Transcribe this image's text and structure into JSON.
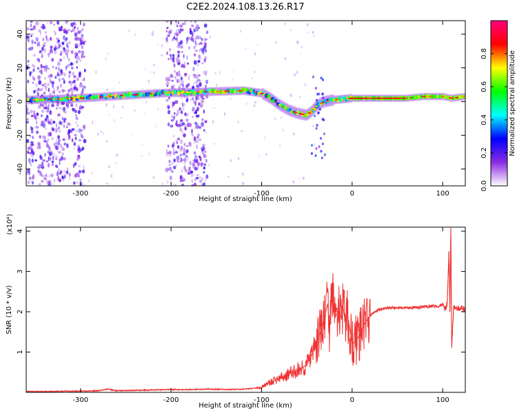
{
  "chart_data": [
    {
      "type": "heatmap",
      "title": "C2E2.2024.108.13.26.R17",
      "xlabel": "Height of straight line (km)",
      "ylabel": "Frequency (Hz)",
      "xlim": [
        -360,
        125
      ],
      "ylim": [
        -50,
        48
      ],
      "x_ticks": [
        -300,
        -200,
        -100,
        0,
        100
      ],
      "y_ticks": [
        -40,
        -20,
        0,
        20,
        40
      ],
      "colorbar": {
        "label": "Normalized spectral amplitude",
        "range": [
          0,
          1
        ],
        "ticks": [
          0.0,
          0.2,
          0.4,
          0.6,
          0.8
        ],
        "colors": [
          "#ffffff",
          "#8a2be2",
          "#0000ff",
          "#00ffff",
          "#00ff00",
          "#ffff00",
          "#ff0000",
          "#ff0080"
        ]
      },
      "ridge": {
        "x": [
          -355,
          -330,
          -300,
          -270,
          -240,
          -210,
          -180,
          -150,
          -120,
          -100,
          -90,
          -80,
          -70,
          -60,
          -50,
          -45,
          -40,
          -35,
          -30,
          -20,
          -10,
          0,
          20,
          40,
          60,
          80,
          100,
          110,
          125
        ],
        "frequency": [
          1,
          1.5,
          2,
          3,
          4,
          5,
          5.5,
          6,
          6.5,
          5,
          2,
          -2,
          -5,
          -7,
          -8,
          -6,
          -3,
          -1,
          0,
          1,
          1.5,
          2,
          2,
          2,
          2,
          3,
          3,
          2,
          3
        ]
      },
      "noise_bands_km": [
        [
          -360,
          -295
        ],
        [
          -205,
          -160
        ]
      ]
    },
    {
      "type": "line",
      "xlabel": "Height of straight line (km)",
      "ylabel": "SNR (10 * v/v)",
      "scale_label": "(x10⁴)",
      "color": "#ee3333",
      "xlim": [
        -360,
        125
      ],
      "ylim": [
        0,
        4.1
      ],
      "x_ticks": [
        -300,
        -200,
        -100,
        0,
        100
      ],
      "y_ticks": [
        1,
        2,
        3,
        4
      ],
      "x": [
        -360,
        -340,
        -320,
        -300,
        -280,
        -270,
        -260,
        -240,
        -220,
        -200,
        -180,
        -160,
        -140,
        -120,
        -110,
        -100,
        -95,
        -90,
        -85,
        -80,
        -75,
        -70,
        -65,
        -60,
        -55,
        -50,
        -45,
        -40,
        -35,
        -30,
        -27,
        -25,
        -22,
        -20,
        -18,
        -15,
        -12,
        -10,
        -8,
        -5,
        -2,
        0,
        5,
        10,
        15,
        20,
        25,
        30,
        40,
        50,
        60,
        70,
        80,
        90,
        95,
        100,
        103,
        105,
        107,
        108,
        109,
        110,
        112,
        115,
        120,
        125
      ],
      "y": [
        0.02,
        0.02,
        0.03,
        0.03,
        0.04,
        0.08,
        0.04,
        0.05,
        0.06,
        0.07,
        0.07,
        0.08,
        0.07,
        0.08,
        0.1,
        0.12,
        0.2,
        0.25,
        0.3,
        0.35,
        0.4,
        0.45,
        0.5,
        0.55,
        0.6,
        0.7,
        0.9,
        1.2,
        1.5,
        1.9,
        2.2,
        1.6,
        2.5,
        2.05,
        1.9,
        2.05,
        1.85,
        2.1,
        1.8,
        1.9,
        1.5,
        1.2,
        1.3,
        1.5,
        1.75,
        1.9,
        2.0,
        2.05,
        2.1,
        2.1,
        2.1,
        2.1,
        2.12,
        2.15,
        2.12,
        2.18,
        2.05,
        2.2,
        3.5,
        2.0,
        4.1,
        1.1,
        2.1,
        2.1,
        2.08,
        2.07
      ]
    }
  ]
}
